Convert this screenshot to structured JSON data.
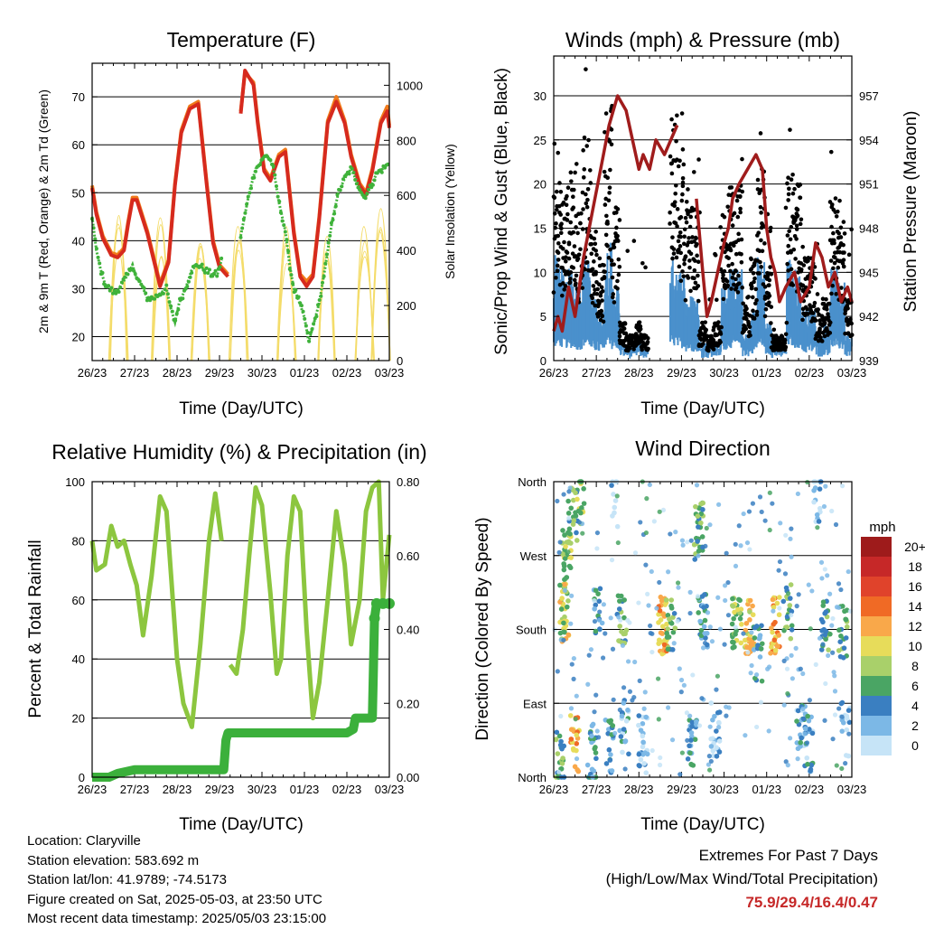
{
  "x_tick_labels": [
    "26/23",
    "27/23",
    "28/23",
    "29/23",
    "30/23",
    "01/23",
    "02/23",
    "03/23"
  ],
  "info": {
    "location": "Location: Claryville",
    "elevation": "Station elevation: 583.692 m",
    "latlon": "Station lat/lon: 41.9789; -74.5173",
    "created": "Figure created on Sat, 2025-05-03, at 23:50 UTC",
    "recent": "Most recent data timestamp: 2025/05/03 23:15:00",
    "extremes_title": "Extremes For Past 7 Days",
    "extremes_sub": "(High/Low/Max Wind/Total Precipitation)",
    "extremes_values": "75.9/29.4/16.4/0.47"
  },
  "colors": {
    "temp2m": "#d62a1e",
    "temp9m": "#f07a1a",
    "dewpoint": "#3fb23a",
    "solar": "#f4dc6a",
    "gust": "#000000",
    "sonic": "#4a90cc",
    "pressure": "#a01c1c",
    "rh": "#8cc63f",
    "precip": "#3bb03b"
  },
  "chart_data": [
    {
      "type": "line",
      "title": "Temperature (F)",
      "xlabel": "Time (Day/UTC)",
      "ylabel": "2m & 9m T (Red, Orange) & 2m Td (Green)",
      "y2label": "Solar Insolation (Yellow)",
      "xlim": [
        0,
        7
      ],
      "ylim": [
        15,
        77
      ],
      "yticks": [
        20,
        30,
        40,
        50,
        60,
        70
      ],
      "y2lim": [
        0,
        1080
      ],
      "y2ticks": [
        0,
        200,
        400,
        600,
        800,
        1000
      ],
      "series": [
        {
          "key": "temp9m",
          "color": "#f07a1a",
          "width": 4,
          "x": [
            0,
            0.1,
            0.25,
            0.45,
            0.6,
            0.75,
            0.85,
            0.95,
            1.05,
            1.3,
            1.6,
            1.8,
            1.95,
            2.1,
            2.3,
            2.5,
            2.7,
            2.85,
            3.0,
            3.2,
            3.3,
            3.5,
            3.6,
            3.8,
            3.9,
            4.05,
            4.2,
            4.4,
            4.55,
            4.75,
            4.9,
            5.05,
            5.2,
            5.35,
            5.55,
            5.75,
            5.95,
            6.1,
            6.3,
            6.45,
            6.6,
            6.8,
            6.95,
            7.0
          ],
          "y": [
            51.5,
            46,
            41,
            37.5,
            37,
            38.5,
            44,
            49,
            49,
            42,
            31,
            36,
            52,
            63,
            68,
            69,
            52,
            40,
            35,
            33,
            null,
            67,
            75,
            73,
            65,
            55,
            53,
            58,
            59,
            42,
            33,
            31.5,
            33,
            45,
            65,
            70,
            65,
            58,
            52,
            50,
            55,
            65,
            68,
            64
          ]
        },
        {
          "key": "temp2m",
          "color": "#d62a1e",
          "width": 4,
          "x": [
            0,
            0.1,
            0.25,
            0.45,
            0.6,
            0.75,
            0.85,
            0.95,
            1.05,
            1.3,
            1.6,
            1.8,
            1.95,
            2.1,
            2.3,
            2.5,
            2.7,
            2.85,
            3.0,
            3.2,
            3.3,
            3.5,
            3.6,
            3.8,
            3.9,
            4.05,
            4.2,
            4.4,
            4.55,
            4.75,
            4.9,
            5.05,
            5.2,
            5.35,
            5.55,
            5.75,
            5.95,
            6.1,
            6.3,
            6.45,
            6.6,
            6.8,
            6.95,
            7.0
          ],
          "y": [
            51,
            45.5,
            40.5,
            37,
            36.5,
            38,
            43.5,
            48.5,
            48.5,
            41.5,
            30.5,
            35.5,
            51.5,
            62.5,
            67.5,
            68.5,
            51.5,
            39.5,
            34.5,
            32.5,
            null,
            66.5,
            75.5,
            72.5,
            64.5,
            54.5,
            52.5,
            57.5,
            58.5,
            41.5,
            32.5,
            30.5,
            32.5,
            44.5,
            64.5,
            69,
            64.5,
            57.5,
            51.5,
            49.5,
            54.5,
            64.5,
            67,
            63.5
          ]
        },
        {
          "key": "dewpoint",
          "color": "#3fb23a",
          "width": 3,
          "dots": true,
          "x": [
            0,
            0.1,
            0.2,
            0.3,
            0.4,
            0.55,
            0.7,
            0.85,
            0.95,
            1.05,
            1.15,
            1.3,
            1.45,
            1.6,
            1.75,
            1.85,
            1.95,
            2.05,
            2.2,
            2.35,
            2.5,
            2.65,
            2.8,
            2.95,
            3.05,
            3.2,
            3.3,
            3.5,
            3.7,
            3.85,
            3.95,
            4.1,
            4.25,
            4.4,
            4.55,
            4.65,
            4.75,
            4.85,
            5.0,
            5.1,
            5.2,
            5.35,
            5.5,
            5.65,
            5.8,
            5.95,
            6.1,
            6.25,
            6.4,
            6.55,
            6.7,
            6.85,
            7.0
          ],
          "y": [
            45,
            38,
            34,
            31,
            30,
            29,
            31,
            33,
            35,
            32,
            31,
            28,
            28,
            29,
            30,
            26,
            23,
            27,
            30,
            34,
            35,
            34,
            33,
            33,
            36,
            null,
            null,
            41,
            50,
            55,
            56,
            58,
            56,
            48,
            42,
            35,
            30,
            28,
            24,
            19,
            22,
            27,
            35,
            44,
            50,
            53,
            55,
            52,
            49,
            51,
            54,
            55,
            56
          ]
        },
        {
          "key": "solar",
          "color": "#f4dc6a",
          "width": 1.2,
          "axis": "y2",
          "peaks": [
            0.62,
            1.62,
            2.55,
            3.45,
            4.58,
            5.52,
            6.42,
            6.8
          ]
        }
      ]
    },
    {
      "type": "scatter",
      "title": "Winds (mph) & Pressure (mb)",
      "xlabel": "Time (Day/UTC)",
      "ylabel": "Sonic/Prop Wind & Gust (Blue, Black)",
      "y2label": "Station Pressure (Maroon)",
      "xlim": [
        0,
        7
      ],
      "ylim": [
        0,
        34.5
      ],
      "yticks": [
        0,
        5,
        10,
        15,
        20,
        25,
        30
      ],
      "y2lim": [
        939,
        959.7
      ],
      "y2ticks": [
        939,
        942,
        945,
        948,
        951,
        954,
        957
      ],
      "series": [
        {
          "key": "pressure",
          "color": "#a01c1c",
          "width": 3.5,
          "x": [
            0,
            0.1,
            0.2,
            0.35,
            0.5,
            0.7,
            0.9,
            1.1,
            1.3,
            1.5,
            1.7,
            1.85,
            2.0,
            2.1,
            2.25,
            2.4,
            2.6,
            2.75,
            2.9,
            3.0,
            3.15,
            3.35,
            3.5,
            3.6,
            3.7,
            3.85,
            4.0,
            4.1,
            4.2,
            4.35,
            4.55,
            4.75,
            4.9,
            5.0,
            5.1,
            5.2,
            5.3,
            5.45,
            5.65,
            5.8,
            6.0,
            6.15,
            6.3,
            6.45,
            6.6,
            6.75,
            6.9,
            7.0
          ],
          "y": [
            941,
            942,
            941,
            944,
            942,
            946,
            949,
            952,
            955,
            957,
            956,
            954,
            952,
            953,
            952,
            954,
            953,
            954,
            955,
            null,
            null,
            950,
            945,
            942,
            943,
            945,
            947,
            948,
            950,
            951,
            952,
            953,
            952,
            948,
            946,
            945,
            943,
            944,
            945,
            943,
            944,
            947,
            946,
            944,
            945,
            943,
            944,
            943
          ]
        },
        {
          "key": "gust",
          "color": "#000000",
          "type": "dots",
          "level": [
            14,
            13,
            15,
            12,
            18,
            10,
            8,
            20,
            12,
            3,
            2,
            3,
            2,
            null,
            null,
            null,
            20,
            16,
            12,
            12,
            3,
            2,
            3,
            12,
            14,
            14,
            5,
            8,
            15,
            7,
            2,
            2,
            15,
            14,
            8,
            8,
            4,
            5,
            13,
            12,
            5
          ]
        },
        {
          "key": "sonic",
          "color": "#4a90cc",
          "type": "band",
          "level": [
            8,
            7,
            7,
            6,
            8,
            5,
            4,
            9,
            6,
            1.5,
            1,
            1.5,
            1,
            null,
            null,
            null,
            8,
            7,
            5,
            5,
            1.5,
            1,
            1.5,
            6,
            7,
            7,
            2,
            4,
            8,
            3,
            1,
            1,
            8,
            7,
            4,
            4,
            2,
            3,
            7,
            6,
            2
          ]
        }
      ]
    },
    {
      "type": "line",
      "title": "Relative Humidity (%) & Precipitation (in)",
      "xlabel": "Time (Day/UTC)",
      "ylabel": "Percent & Total Rainfall",
      "xlim": [
        0,
        7
      ],
      "ylim": [
        0,
        100
      ],
      "yticks": [
        0,
        20,
        40,
        60,
        80,
        100
      ],
      "y2lim": [
        0,
        0.8
      ],
      "y2ticks": [
        "0.00",
        "0.20",
        "0.40",
        "0.60",
        "0.80"
      ],
      "series": [
        {
          "key": "rh",
          "color": "#8cc63f",
          "width": 5,
          "x": [
            0,
            0.1,
            0.3,
            0.45,
            0.6,
            0.75,
            0.9,
            1.05,
            1.2,
            1.4,
            1.6,
            1.75,
            1.9,
            2.0,
            2.15,
            2.35,
            2.55,
            2.75,
            2.9,
            3.05,
            3.15,
            3.25,
            3.4,
            3.55,
            3.7,
            3.85,
            4.0,
            4.2,
            4.35,
            4.45,
            4.6,
            4.75,
            4.9,
            5.05,
            5.2,
            5.35,
            5.55,
            5.75,
            5.95,
            6.1,
            6.3,
            6.45,
            6.6,
            6.75,
            6.85,
            7.0
          ],
          "y": [
            80,
            70,
            72,
            85,
            78,
            80,
            72,
            65,
            48,
            68,
            95,
            90,
            60,
            40,
            25,
            17,
            45,
            80,
            96,
            80,
            null,
            38,
            35,
            50,
            75,
            98,
            92,
            62,
            35,
            40,
            75,
            95,
            90,
            50,
            20,
            32,
            60,
            90,
            72,
            45,
            60,
            90,
            98,
            100,
            60,
            82
          ]
        },
        {
          "key": "precip",
          "color": "#3bb03b",
          "width": 10,
          "axis": "y2",
          "x": [
            0,
            0.4,
            0.6,
            1.0,
            2.0,
            2.9,
            3.1,
            3.15,
            3.2,
            6.0,
            6.15,
            6.2,
            6.6,
            6.65,
            6.7,
            7.0
          ],
          "y": [
            0,
            0,
            0.01,
            0.02,
            0.02,
            0.02,
            0.02,
            0.1,
            0.12,
            0.12,
            0.13,
            0.16,
            0.16,
            0.43,
            0.47,
            0.47
          ]
        }
      ]
    },
    {
      "type": "scatter",
      "title": "Wind Direction",
      "xlabel": "Time (Day/UTC)",
      "ylabel": "Direction (Colored By Speed)",
      "xlim": [
        0,
        7
      ],
      "ylim": [
        0,
        360
      ],
      "ytick_labels": [
        "North",
        "East",
        "South",
        "West",
        "North"
      ],
      "legend": {
        "title": "mph",
        "labels": [
          "20+",
          "18",
          "16",
          "14",
          "12",
          "10",
          "8",
          "6",
          "4",
          "2",
          "0"
        ],
        "colors": [
          "#9e1b1b",
          "#c62828",
          "#e0432b",
          "#f06a25",
          "#f9a84a",
          "#e7dc5a",
          "#a9d06a",
          "#4aa564",
          "#3a7fc1",
          "#7cb8e6",
          "#c6e4f7"
        ]
      },
      "clusters": [
        {
          "x": 0.15,
          "y": 20,
          "n": 25,
          "speed": 6
        },
        {
          "x": 0.3,
          "y": 270,
          "n": 30,
          "speed": 8
        },
        {
          "x": 0.45,
          "y": 320,
          "n": 20,
          "speed": 6
        },
        {
          "x": 0.5,
          "y": 40,
          "n": 20,
          "speed": 12
        },
        {
          "x": 0.25,
          "y": 200,
          "n": 35,
          "speed": 9
        },
        {
          "x": 0.65,
          "y": 340,
          "n": 15,
          "speed": 8
        },
        {
          "x": 0.9,
          "y": 30,
          "n": 25,
          "speed": 4
        },
        {
          "x": 1.05,
          "y": 200,
          "n": 15,
          "speed": 4
        },
        {
          "x": 1.3,
          "y": 40,
          "n": 20,
          "speed": 4
        },
        {
          "x": 1.45,
          "y": 340,
          "n": 10,
          "speed": 2
        },
        {
          "x": 1.6,
          "y": 190,
          "n": 20,
          "speed": 6
        },
        {
          "x": 1.65,
          "y": 60,
          "n": 20,
          "speed": 3
        },
        {
          "x": 2.1,
          "y": 40,
          "n": 25,
          "speed": 2
        },
        {
          "x": 2.55,
          "y": 185,
          "n": 35,
          "speed": 12
        },
        {
          "x": 2.75,
          "y": 190,
          "n": 20,
          "speed": 6
        },
        {
          "x": 3.25,
          "y": 40,
          "n": 25,
          "speed": 4
        },
        {
          "x": 3.4,
          "y": 300,
          "n": 30,
          "speed": 6
        },
        {
          "x": 3.5,
          "y": 190,
          "n": 25,
          "speed": 4
        },
        {
          "x": 3.8,
          "y": 60,
          "n": 20,
          "speed": 2
        },
        {
          "x": 4.3,
          "y": 185,
          "n": 30,
          "speed": 8
        },
        {
          "x": 4.6,
          "y": 185,
          "n": 30,
          "speed": 10
        },
        {
          "x": 4.8,
          "y": 150,
          "n": 20,
          "speed": 4
        },
        {
          "x": 5.2,
          "y": 185,
          "n": 30,
          "speed": 12
        },
        {
          "x": 5.5,
          "y": 200,
          "n": 20,
          "speed": 6
        },
        {
          "x": 5.8,
          "y": 60,
          "n": 25,
          "speed": 3
        },
        {
          "x": 6.0,
          "y": 40,
          "n": 20,
          "speed": 3
        },
        {
          "x": 6.4,
          "y": 185,
          "n": 25,
          "speed": 6
        },
        {
          "x": 6.2,
          "y": 340,
          "n": 15,
          "speed": 2
        },
        {
          "x": 6.8,
          "y": 180,
          "n": 20,
          "speed": 6
        },
        {
          "x": 6.85,
          "y": 60,
          "n": 15,
          "speed": 2
        }
      ]
    }
  ]
}
